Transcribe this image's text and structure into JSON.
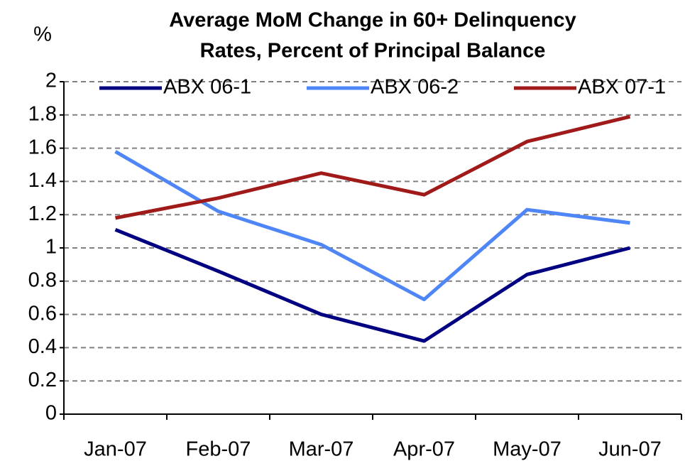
{
  "chart_data": {
    "type": "line",
    "title": [
      "Average MoM Change in 60+ Delinquency",
      "Rates, Percent of Principal Balance"
    ],
    "y_label": "%",
    "categories": [
      "Jan-07",
      "Feb-07",
      "Mar-07",
      "Apr-07",
      "May-07",
      "Jun-07"
    ],
    "series": [
      {
        "name": "ABX 06-1",
        "color": "#000080",
        "values": [
          1.11,
          0.86,
          0.6,
          0.44,
          0.84,
          1.0
        ]
      },
      {
        "name": "ABX 06-2",
        "color": "#4f86f7",
        "values": [
          1.58,
          1.22,
          1.02,
          0.69,
          1.23,
          1.15
        ]
      },
      {
        "name": "ABX 07-1",
        "color": "#a01a1a",
        "values": [
          1.18,
          1.3,
          1.45,
          1.32,
          1.64,
          1.79
        ]
      }
    ],
    "ylim": [
      0,
      2
    ],
    "yticks": [
      0,
      0.2,
      0.4,
      0.6,
      0.8,
      1,
      1.2,
      1.4,
      1.6,
      1.8,
      2
    ],
    "grid": true
  }
}
